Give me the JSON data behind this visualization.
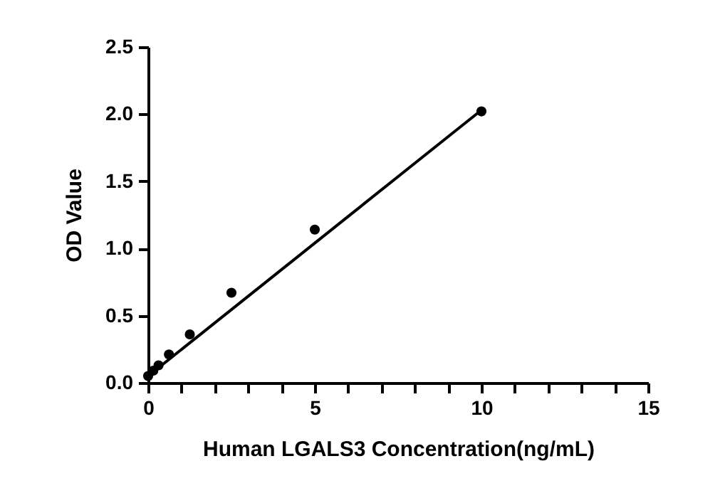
{
  "chart_data": {
    "type": "scatter",
    "xlabel": "Human LGALS3 Concentration(ng/mL)",
    "ylabel": "OD Value",
    "xlim": [
      0,
      15
    ],
    "ylim": [
      0,
      2.5
    ],
    "xticks": [
      0,
      {
        "value": 1,
        "label": null
      },
      {
        "value": 2,
        "label": null
      },
      {
        "value": 3,
        "label": null
      },
      {
        "value": 4,
        "label": null
      },
      5,
      {
        "value": 6,
        "label": null
      },
      {
        "value": 7,
        "label": null
      },
      {
        "value": 8,
        "label": null
      },
      {
        "value": 9,
        "label": null
      },
      10,
      {
        "value": 11,
        "label": null
      },
      {
        "value": 12,
        "label": null
      },
      {
        "value": 13,
        "label": null
      },
      {
        "value": 14,
        "label": null
      },
      15
    ],
    "yticks": [
      {
        "value": 0,
        "label": "0.0"
      },
      0.5,
      {
        "value": 1,
        "label": "1.0"
      },
      1.5,
      {
        "value": 2,
        "label": "2.0"
      },
      2.5
    ],
    "grid": false,
    "series": [
      {
        "color": "#000000",
        "marker": "circle",
        "x": [
          0,
          0.156,
          0.3125,
          0.625,
          1.25,
          2.5,
          5,
          10
        ],
        "values": [
          0.05,
          0.09,
          0.13,
          0.21,
          0.36,
          0.67,
          1.14,
          2.02
        ]
      },
      {
        "type": "line",
        "marker": "none",
        "color": "#000000",
        "x": [
          0,
          10
        ],
        "values": [
          0.05,
          2.03
        ]
      }
    ]
  }
}
